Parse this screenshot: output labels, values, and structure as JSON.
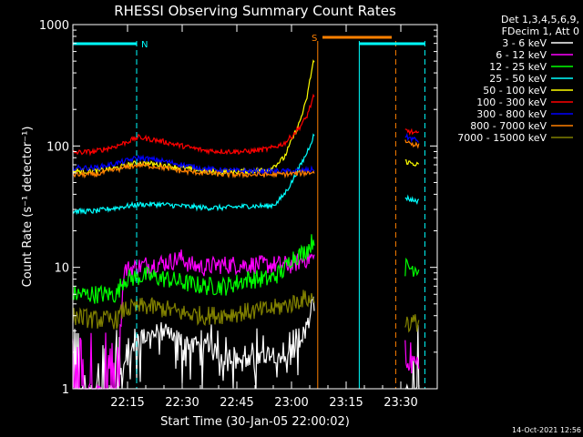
{
  "chart_data": {
    "type": "line",
    "title": "RHESSI Observing Summary Count Rates",
    "xlabel": "Start Time (30-Jan-05 22:00:02)",
    "ylabel": "Count Rate (s⁻¹ detector⁻¹)",
    "ylog": true,
    "ylim": [
      1,
      1000
    ],
    "xlim_minutes": [
      0,
      100
    ],
    "x_ticks": [
      {
        "min": 15,
        "label": "22:15"
      },
      {
        "min": 30,
        "label": "22:30"
      },
      {
        "min": 45,
        "label": "22:45"
      },
      {
        "min": 60,
        "label": "23:00"
      },
      {
        "min": 75,
        "label": "23:15"
      },
      {
        "min": 90,
        "label": "23:30"
      }
    ],
    "y_ticks": [
      {
        "v": 1,
        "label": "1"
      },
      {
        "v": 10,
        "label": "10"
      },
      {
        "v": 100,
        "label": "100"
      },
      {
        "v": 1000,
        "label": "1000"
      }
    ],
    "legend_header": [
      "Det 1,3,4,5,6,9,",
      "FDecim 1, Att 0"
    ],
    "legend_position": "right",
    "timestamp": "14-Oct-2021 12:56",
    "gaps": [
      [
        67,
        91
      ]
    ],
    "attenuator_events": [
      {
        "t": 17.5,
        "color": "#00ffff",
        "style": "dashed",
        "label": "N"
      },
      {
        "t": 67.2,
        "color": "#ff8000",
        "style": "solid",
        "label": "S"
      },
      {
        "t": 78.6,
        "color": "#00ffff",
        "style": "solid",
        "label": ""
      },
      {
        "t": 88.6,
        "color": "#ff8000",
        "style": "dashed",
        "label": ""
      },
      {
        "t": 96.6,
        "color": "#00ffff",
        "style": "dashed",
        "label": ""
      }
    ],
    "flag_bars": [
      {
        "t0": 0,
        "t1": 17.5,
        "color": "#00ffff",
        "label": "N"
      },
      {
        "t0": 68.5,
        "t1": 87.5,
        "color": "#ff8000",
        "label": "S"
      },
      {
        "t0": 78.6,
        "t1": 96.6,
        "color": "#00ffff",
        "label": ""
      }
    ],
    "series": [
      {
        "name": "3 - 6 keV",
        "color": "#ffffff",
        "x": [
          0,
          12,
          14,
          16,
          18,
          24,
          30,
          36,
          42,
          48,
          54,
          60,
          63,
          65,
          66,
          91,
          93,
          95
        ],
        "y": [
          0.9,
          0.9,
          1.5,
          2.0,
          2.5,
          3.0,
          2.5,
          2.2,
          1.8,
          1.6,
          2.0,
          1.8,
          2.5,
          4.0,
          5.0,
          0.9,
          0.9,
          0.9
        ]
      },
      {
        "name": "6 - 12 keV",
        "color": "#ff00ff",
        "x": [
          0,
          12,
          14,
          20,
          26,
          30,
          32,
          36,
          40,
          48,
          54,
          60,
          63,
          65,
          66,
          91,
          93,
          95
        ],
        "y": [
          0.9,
          0.9,
          9.5,
          10.5,
          11.0,
          12.0,
          10.5,
          10.0,
          10.5,
          10.5,
          10.5,
          10.5,
          11.5,
          12.0,
          12.0,
          1.5,
          1.6,
          1.7
        ]
      },
      {
        "name": "12 - 25 keV",
        "color": "#00ff00",
        "x": [
          0,
          12,
          14,
          20,
          26,
          30,
          36,
          42,
          48,
          54,
          58,
          60,
          63,
          65,
          66,
          91,
          93,
          95
        ],
        "y": [
          6.0,
          6.0,
          8.0,
          8.5,
          8.0,
          7.5,
          7.0,
          7.0,
          8.0,
          8.0,
          9.5,
          12.0,
          13.0,
          15.0,
          17.0,
          10.0,
          10.0,
          10.0
        ]
      },
      {
        "name": "25 - 50 keV",
        "color": "#00ffff",
        "x": [
          0,
          6,
          12,
          18,
          24,
          30,
          36,
          42,
          48,
          54,
          56,
          58,
          60,
          62,
          64,
          66,
          91,
          93,
          95
        ],
        "y": [
          29,
          29,
          31,
          33,
          33,
          32,
          31,
          31,
          32,
          32,
          34,
          40,
          50,
          65,
          85,
          120,
          38,
          36,
          35
        ]
      },
      {
        "name": "50 - 100 keV",
        "color": "#ffff00",
        "x": [
          0,
          6,
          12,
          18,
          24,
          30,
          36,
          42,
          48,
          54,
          58,
          60,
          62,
          64,
          66,
          91,
          93,
          95
        ],
        "y": [
          62,
          62,
          66,
          73,
          70,
          66,
          62,
          61,
          62,
          64,
          80,
          110,
          150,
          230,
          500,
          75,
          72,
          70
        ]
      },
      {
        "name": "100 - 300 keV",
        "color": "#ff0000",
        "x": [
          0,
          6,
          12,
          18,
          24,
          30,
          36,
          42,
          48,
          54,
          58,
          60,
          62,
          64,
          66,
          91,
          93,
          95
        ],
        "y": [
          88,
          90,
          100,
          118,
          110,
          100,
          92,
          90,
          90,
          95,
          105,
          120,
          140,
          170,
          250,
          135,
          130,
          125
        ]
      },
      {
        "name": "300 - 800 keV",
        "color": "#0000ff",
        "x": [
          0,
          6,
          12,
          18,
          24,
          30,
          36,
          42,
          48,
          54,
          60,
          64,
          66,
          91,
          93,
          95
        ],
        "y": [
          66,
          66,
          72,
          80,
          76,
          70,
          65,
          63,
          62,
          62,
          62,
          63,
          64,
          120,
          115,
          110
        ]
      },
      {
        "name": "800 - 7000 keV",
        "color": "#ff8000",
        "x": [
          0,
          6,
          12,
          18,
          24,
          30,
          36,
          42,
          48,
          54,
          60,
          64,
          66,
          91,
          93,
          95
        ],
        "y": [
          58,
          58,
          64,
          70,
          67,
          62,
          60,
          58,
          58,
          58,
          59,
          60,
          61,
          110,
          105,
          100
        ]
      },
      {
        "name": "7000 - 15000 keV",
        "color": "#808000",
        "x": [
          0,
          6,
          12,
          14,
          20,
          26,
          30,
          36,
          42,
          48,
          54,
          60,
          63,
          66,
          91,
          93,
          95
        ],
        "y": [
          4.0,
          3.7,
          3.7,
          4.5,
          4.8,
          4.5,
          4.2,
          4.0,
          4.1,
          4.3,
          4.5,
          5.0,
          5.5,
          5.5,
          3.6,
          3.5,
          3.5
        ]
      }
    ]
  }
}
